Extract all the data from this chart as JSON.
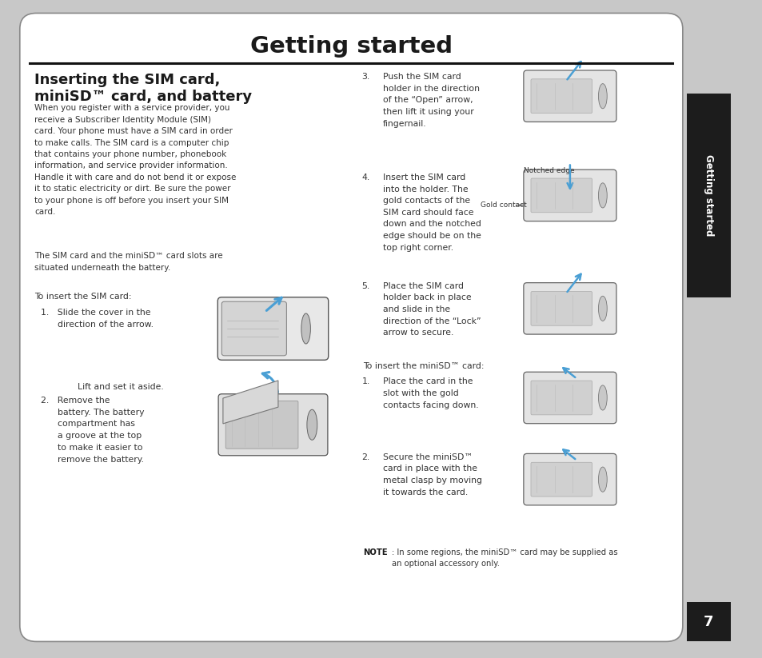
{
  "page_bg": "#c8c8c8",
  "content_bg": "#ffffff",
  "title": "Getting started",
  "section_title_line1": "Inserting the SIM card,",
  "section_title_line2": "miniSD™ card, and battery",
  "body_para1": "When you register with a service provider, you\nreceive a Subscriber Identity Module (SIM)\ncard. Your phone must have a SIM card in order\nto make calls. The SIM card is a computer chip\nthat contains your phone number, phonebook\ninformation, and service provider information.\nHandle it with care and do not bend it or expose\nit to static electricity or dirt. Be sure the power\nto your phone is off before you insert your SIM\ncard.",
  "body_para2": "The SIM card and the miniSD™ card slots are\nsituated underneath the battery.",
  "insert_sim_label": "To insert the SIM card:",
  "step1_text": "1.   Slide the cover in the\n      direction of the arrow.",
  "step2_pre": "      Lift and set it aside.",
  "step2_text": "2.   Remove the\n      battery. The battery\n      compartment has\n      a groove at the top\n      to make it easier to\n      remove the battery.",
  "step3_num": "3.",
  "step3_text": "Push the SIM card\nholder in the direction\nof the “Open” arrow,\nthen lift it using your\nfingernail.",
  "step4_num": "4.",
  "step4_text": "Insert the SIM card\ninto the holder. The\ngold contacts of the\nSIM card should face\ndown and the notched\nedge should be on the\ntop right corner.",
  "step5_num": "5.",
  "step5_text": "Place the SIM card\nholder back in place\nand slide in the\ndirection of the “Lock”\narrow to secure.",
  "insert_minisd_label": "To insert the miniSD™ card:",
  "minisd1_num": "1.",
  "minisd1_text": "Place the card in the\nslot with the gold\ncontacts facing down.",
  "minisd2_num": "2.",
  "minisd2_text": "Secure the miniSD™\ncard in place with the\nmetal clasp by moving\nit towards the card.",
  "note_bold": "NOTE",
  "note_text": ": In some regions, the miniSD™ card may be supplied as\nan optional accessory only.",
  "notched_edge_label": "Notched edge",
  "gold_contact_label": "Gold contact",
  "sidebar_text": "Getting started",
  "page_number": "7",
  "sidebar_bg": "#1c1c1c",
  "sidebar_text_color": "#ffffff",
  "blue_arrow_color": "#4a9fd4",
  "divider_color": "#111111",
  "text_color": "#1a1a1a",
  "body_text_color": "#333333"
}
